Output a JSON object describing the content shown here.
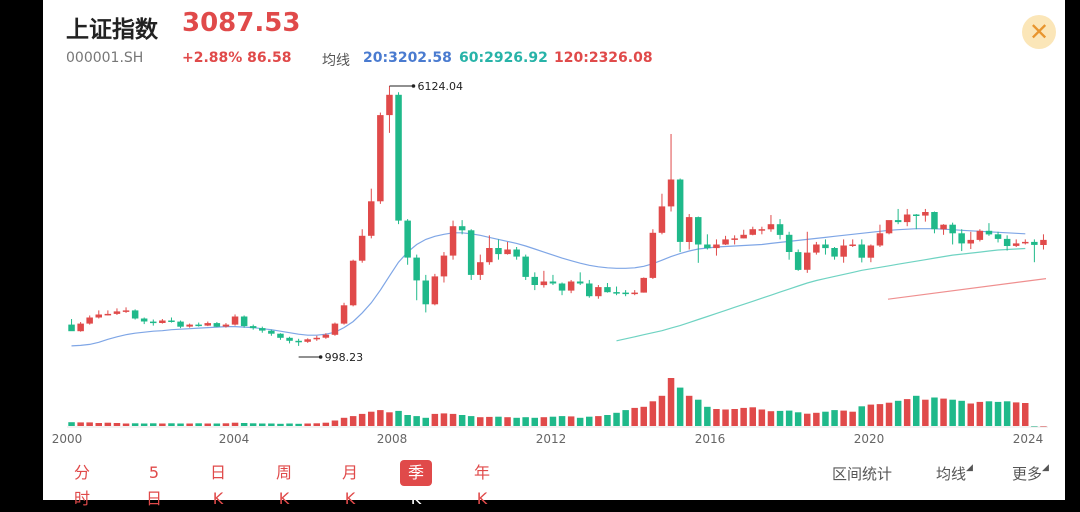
{
  "header": {
    "name": "上证指数",
    "price": "3087.53",
    "code": "000001.SH",
    "change": "+2.88% 86.58",
    "ma_label": "均线",
    "ma20": "20:3202.58",
    "ma60": "60:2926.92",
    "ma120": "120:2326.08"
  },
  "tabs": [
    "分时",
    "5日",
    "日K",
    "周K",
    "月K",
    "季K",
    "年K"
  ],
  "active_tab": "季K",
  "tools": {
    "range_stats": "区间统计",
    "ma": "均线",
    "more": "更多"
  },
  "colors": {
    "up": "#e04a4a",
    "down": "#1fb98a",
    "ma20": "#7fa6e6",
    "ma60": "#6fd3c2",
    "ma120": "#ef8f8f"
  },
  "chart_data": {
    "type": "candlestick",
    "x_ticks": [
      "2000",
      "2004",
      "2008",
      "2012",
      "2016",
      "2020",
      "2024"
    ],
    "annotations": {
      "high": "6124.04",
      "low": "998.23"
    },
    "candles": [
      [
        1420,
        1290,
        1530,
        1300
      ],
      [
        1290,
        1440,
        1470,
        1280
      ],
      [
        1440,
        1560,
        1600,
        1420
      ],
      [
        1560,
        1620,
        1700,
        1540
      ],
      [
        1620,
        1630,
        1700,
        1600
      ],
      [
        1630,
        1680,
        1740,
        1610
      ],
      [
        1680,
        1700,
        1760,
        1650
      ],
      [
        1700,
        1540,
        1720,
        1520
      ],
      [
        1540,
        1480,
        1560,
        1430
      ],
      [
        1480,
        1450,
        1520,
        1400
      ],
      [
        1450,
        1500,
        1530,
        1440
      ],
      [
        1500,
        1480,
        1560,
        1460
      ],
      [
        1480,
        1380,
        1500,
        1350
      ],
      [
        1380,
        1420,
        1440,
        1360
      ],
      [
        1420,
        1400,
        1460,
        1380
      ],
      [
        1400,
        1450,
        1480,
        1390
      ],
      [
        1450,
        1380,
        1470,
        1370
      ],
      [
        1380,
        1420,
        1450,
        1360
      ],
      [
        1420,
        1580,
        1620,
        1400
      ],
      [
        1580,
        1390,
        1600,
        1360
      ],
      [
        1390,
        1350,
        1420,
        1320
      ],
      [
        1350,
        1300,
        1380,
        1260
      ],
      [
        1300,
        1240,
        1320,
        1200
      ],
      [
        1240,
        1160,
        1250,
        1120
      ],
      [
        1160,
        1100,
        1180,
        1050
      ],
      [
        1100,
        1080,
        1140,
        1000
      ],
      [
        1080,
        1130,
        1150,
        1060
      ],
      [
        1130,
        1160,
        1200,
        1100
      ],
      [
        1160,
        1220,
        1250,
        1140
      ],
      [
        1220,
        1440,
        1460,
        1200
      ],
      [
        1440,
        1800,
        1850,
        1420
      ],
      [
        1800,
        2680,
        2700,
        1780
      ],
      [
        2680,
        3170,
        3300,
        2640
      ],
      [
        3170,
        3850,
        4100,
        3120
      ],
      [
        3850,
        5550,
        5600,
        3800
      ],
      [
        5550,
        5950,
        6124,
        5200
      ],
      [
        5950,
        3470,
        6000,
        3400
      ],
      [
        3470,
        2740,
        3500,
        2600
      ],
      [
        2740,
        2290,
        2800,
        1900
      ],
      [
        2290,
        1820,
        2400,
        1660
      ],
      [
        1820,
        2370,
        2420,
        1800
      ],
      [
        2370,
        2780,
        2850,
        2250
      ],
      [
        2780,
        3360,
        3470,
        2700
      ],
      [
        3360,
        3280,
        3480,
        3200
      ],
      [
        3280,
        2400,
        3300,
        2300
      ],
      [
        2400,
        2650,
        2800,
        2300
      ],
      [
        2650,
        2930,
        3180,
        2600
      ],
      [
        2930,
        2810,
        3100,
        2700
      ],
      [
        2810,
        2900,
        3050,
        2800
      ],
      [
        2900,
        2760,
        2950,
        2700
      ],
      [
        2760,
        2360,
        2800,
        2300
      ],
      [
        2360,
        2200,
        2450,
        2100
      ],
      [
        2200,
        2270,
        2480,
        2150
      ],
      [
        2270,
        2230,
        2400,
        2200
      ],
      [
        2230,
        2090,
        2250,
        2000
      ],
      [
        2090,
        2270,
        2300,
        2040
      ],
      [
        2270,
        2230,
        2450,
        2200
      ],
      [
        2230,
        1980,
        2300,
        1950
      ],
      [
        1980,
        2160,
        2200,
        1930
      ],
      [
        2160,
        2060,
        2240,
        2050
      ],
      [
        2060,
        2050,
        2170,
        2000
      ],
      [
        2050,
        2030,
        2100,
        1980
      ],
      [
        2030,
        2050,
        2100,
        2000
      ],
      [
        2050,
        2340,
        2350,
        2050
      ],
      [
        2340,
        3230,
        3300,
        2320
      ],
      [
        3230,
        3750,
        4000,
        3200
      ],
      [
        3750,
        4280,
        5178,
        3650
      ],
      [
        4280,
        3050,
        4300,
        2850
      ],
      [
        3050,
        3540,
        3600,
        2900
      ],
      [
        3540,
        3000,
        3550,
        2638
      ],
      [
        3000,
        2930,
        3200,
        2900
      ],
      [
        2930,
        3000,
        3100,
        2780
      ],
      [
        3000,
        3100,
        3170,
        2990
      ],
      [
        3100,
        3120,
        3180,
        3000
      ],
      [
        3120,
        3190,
        3290,
        3120
      ],
      [
        3190,
        3300,
        3350,
        3180
      ],
      [
        3300,
        3300,
        3350,
        3200
      ],
      [
        3300,
        3400,
        3580,
        3250
      ],
      [
        3400,
        3190,
        3500,
        3100
      ],
      [
        3190,
        2850,
        3250,
        2700
      ],
      [
        2850,
        2500,
        2900,
        2480
      ],
      [
        2500,
        2840,
        3250,
        2440
      ],
      [
        2840,
        3000,
        3050,
        2800
      ],
      [
        3000,
        2930,
        3100,
        2800
      ],
      [
        2930,
        2760,
        2950,
        2700
      ],
      [
        2760,
        2980,
        3100,
        2640
      ],
      [
        2980,
        3000,
        3100,
        2950
      ],
      [
        3000,
        2740,
        3100,
        2646
      ],
      [
        2740,
        2980,
        3000,
        2650
      ],
      [
        2980,
        3220,
        3390,
        2950
      ],
      [
        3220,
        3480,
        3460,
        3200
      ],
      [
        3480,
        3440,
        3700,
        3400
      ],
      [
        3440,
        3590,
        3700,
        3360
      ],
      [
        3590,
        3570,
        3600,
        3300
      ],
      [
        3570,
        3640,
        3700,
        3450
      ],
      [
        3640,
        3300,
        3650,
        3220
      ],
      [
        3300,
        3390,
        3400,
        3190
      ],
      [
        3390,
        3220,
        3430,
        3000
      ],
      [
        3220,
        3020,
        3300,
        2870
      ],
      [
        3020,
        3090,
        3250,
        2910
      ],
      [
        3090,
        3270,
        3300,
        3060
      ],
      [
        3270,
        3200,
        3420,
        3170
      ],
      [
        3200,
        3110,
        3250,
        3040
      ],
      [
        3110,
        2970,
        3180,
        2880
      ],
      [
        2970,
        3020,
        3100,
        2950
      ],
      [
        3020,
        3050,
        3100,
        3000
      ],
      [
        3050,
        2990,
        3100,
        2650
      ],
      [
        2990,
        3090,
        3200,
        2900
      ]
    ],
    "volume": [
      14,
      13,
      13,
      11,
      12,
      11,
      9,
      10,
      9,
      10,
      9,
      10,
      9,
      9,
      10,
      9,
      9,
      10,
      12,
      11,
      10,
      9,
      9,
      8,
      9,
      8,
      9,
      10,
      12,
      20,
      30,
      36,
      44,
      52,
      58,
      50,
      55,
      40,
      36,
      30,
      44,
      46,
      44,
      40,
      36,
      32,
      33,
      34,
      32,
      30,
      32,
      30,
      32,
      34,
      36,
      35,
      30,
      34,
      36,
      40,
      48,
      58,
      66,
      70,
      90,
      110,
      175,
      140,
      110,
      96,
      70,
      62,
      60,
      62,
      66,
      68,
      60,
      54,
      55,
      56,
      50,
      45,
      48,
      52,
      58,
      56,
      52,
      72,
      78,
      80,
      85,
      92,
      98,
      110,
      96,
      104,
      100,
      96,
      92,
      82,
      88,
      90,
      88,
      90,
      86,
      84
    ],
    "ma20": [
      1000,
      1010,
      1030,
      1070,
      1130,
      1180,
      1220,
      1250,
      1270,
      1290,
      1300,
      1320,
      1330,
      1340,
      1350,
      1360,
      1370,
      1380,
      1380,
      1370,
      1360,
      1340,
      1320,
      1290,
      1260,
      1230,
      1210,
      1210,
      1230,
      1270,
      1360,
      1480,
      1650,
      1850,
      2100,
      2380,
      2650,
      2850,
      3000,
      3100,
      3160,
      3200,
      3230,
      3230,
      3210,
      3180,
      3140,
      3100,
      3060,
      3020,
      2970,
      2910,
      2850,
      2790,
      2730,
      2680,
      2630,
      2590,
      2560,
      2540,
      2530,
      2530,
      2540,
      2570,
      2620,
      2690,
      2760,
      2820,
      2870,
      2910,
      2930,
      2950,
      2960,
      2970,
      2980,
      2990,
      3000,
      3020,
      3040,
      3060,
      3080,
      3100,
      3120,
      3140,
      3160,
      3180,
      3200,
      3220,
      3240,
      3260,
      3280,
      3290,
      3300,
      3310,
      3310,
      3310,
      3300,
      3290,
      3280,
      3270,
      3260,
      3250,
      3240,
      3230,
      3220,
      3210
    ],
    "ma60": [
      null,
      null,
      null,
      null,
      null,
      null,
      null,
      null,
      null,
      null,
      null,
      null,
      null,
      null,
      null,
      null,
      null,
      null,
      null,
      null,
      null,
      null,
      null,
      null,
      null,
      null,
      null,
      null,
      null,
      null,
      null,
      null,
      null,
      null,
      null,
      null,
      null,
      null,
      null,
      null,
      null,
      null,
      null,
      null,
      null,
      null,
      null,
      null,
      null,
      null,
      null,
      null,
      null,
      null,
      null,
      null,
      null,
      null,
      null,
      null,
      1100,
      1140,
      1180,
      1220,
      1260,
      1300,
      1350,
      1400,
      1460,
      1520,
      1580,
      1640,
      1700,
      1760,
      1820,
      1880,
      1940,
      2000,
      2060,
      2120,
      2180,
      2240,
      2290,
      2330,
      2370,
      2410,
      2450,
      2490,
      2520,
      2550,
      2580,
      2610,
      2640,
      2670,
      2700,
      2730,
      2760,
      2790,
      2810,
      2830,
      2850,
      2870,
      2890,
      2900,
      2910,
      2920
    ],
    "ma120": [
      null,
      null,
      null,
      null,
      null,
      null,
      null,
      null,
      null,
      null,
      null,
      null,
      null,
      null,
      null,
      null,
      null,
      null,
      null,
      null,
      null,
      null,
      null,
      null,
      null,
      null,
      null,
      null,
      null,
      null,
      null,
      null,
      null,
      null,
      null,
      null,
      null,
      null,
      null,
      null,
      null,
      null,
      null,
      null,
      null,
      null,
      null,
      null,
      null,
      null,
      null,
      null,
      null,
      null,
      null,
      null,
      null,
      null,
      null,
      null,
      null,
      null,
      null,
      null,
      null,
      null,
      null,
      null,
      null,
      null,
      null,
      null,
      null,
      null,
      null,
      null,
      null,
      null,
      null,
      null,
      null,
      null,
      null,
      null,
      null,
      null,
      null,
      null,
      null,
      null,
      null,
      null,
      null,
      null,
      null,
      null,
      null,
      null,
      null,
      null,
      null,
      null,
      null,
      null,
      null,
      null
    ],
    "ma120_line": {
      "start_value": 1920,
      "end_value": 2326
    }
  }
}
